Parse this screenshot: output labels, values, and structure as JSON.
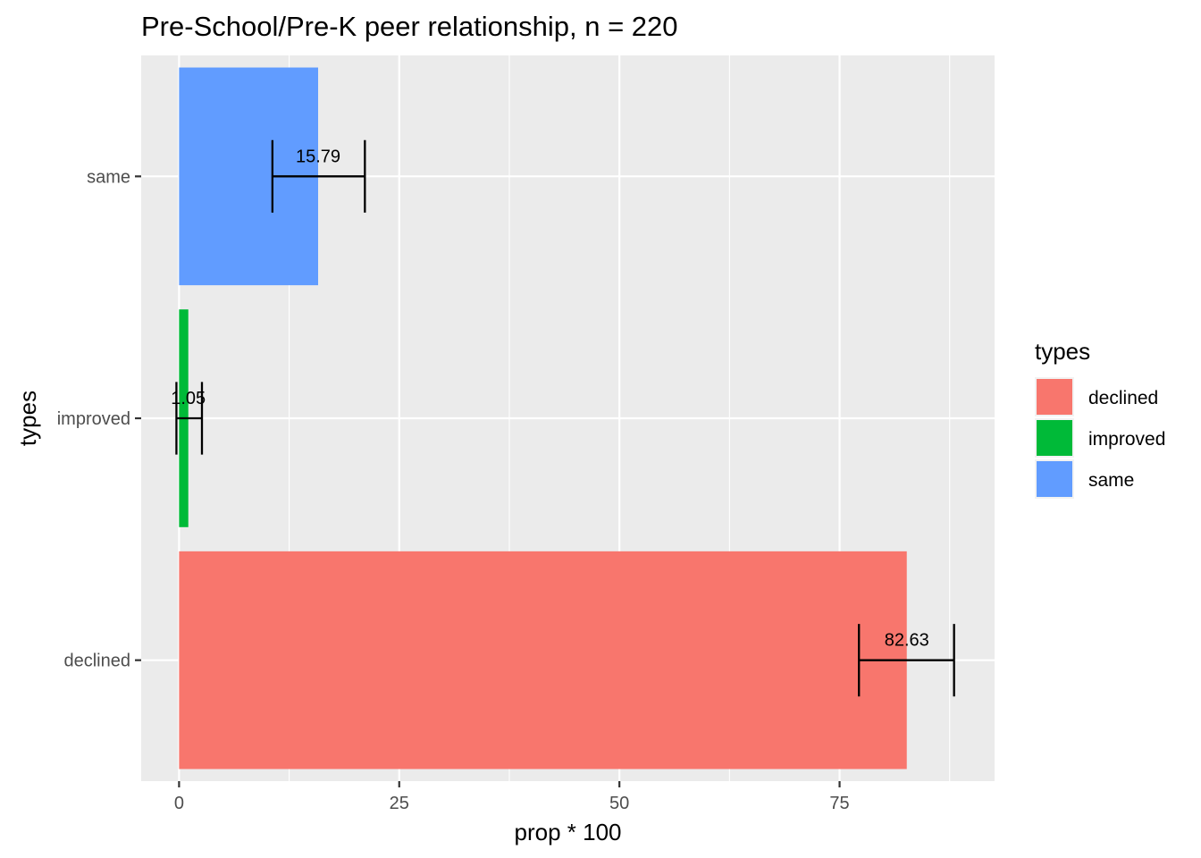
{
  "chart_data": {
    "type": "bar",
    "orientation": "horizontal",
    "title": "Pre-School/Pre-K peer relationship, n = 220",
    "xlabel": "prop * 100",
    "ylabel": "types",
    "xlim": [
      -4.3,
      92.6
    ],
    "x_ticks": [
      0,
      25,
      50,
      75
    ],
    "x_tick_labels": [
      "0",
      "25",
      "50",
      "75"
    ],
    "categories": [
      "declined",
      "improved",
      "same"
    ],
    "values": [
      82.63,
      1.05,
      15.79
    ],
    "value_labels": [
      "82.63",
      "1.05",
      "15.79"
    ],
    "error_low": [
      77.2,
      -0.3,
      10.6
    ],
    "error_high": [
      88.0,
      2.6,
      21.1
    ],
    "colors": [
      "#F8766D",
      "#00BA38",
      "#619CFF"
    ],
    "grid": true,
    "legend": {
      "title": "types",
      "position": "right",
      "entries": [
        "declined",
        "improved",
        "same"
      ]
    }
  }
}
